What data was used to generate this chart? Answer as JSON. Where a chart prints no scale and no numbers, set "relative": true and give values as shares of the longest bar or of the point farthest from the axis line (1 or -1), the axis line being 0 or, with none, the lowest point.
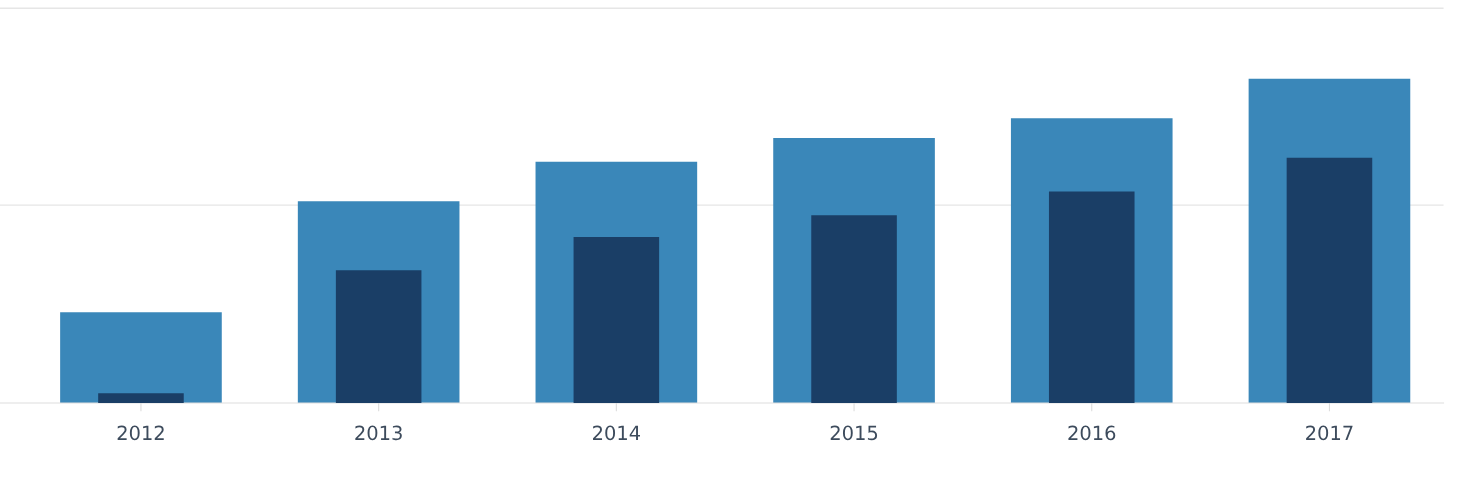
{
  "chart_data": {
    "type": "bar",
    "relative": true,
    "legend": false,
    "ref_lines": [
      {
        "axis": "y",
        "value": 0.61,
        "color": "#e6e6e6"
      },
      {
        "axis": "y",
        "value": 1.217,
        "color": "#e6e6e6"
      }
    ],
    "categories": [
      "2012",
      "2013",
      "2014",
      "2015",
      "2016",
      "2017"
    ],
    "series": [
      {
        "color": "#3a87b9",
        "values": [
          0.28,
          0.622,
          0.744,
          0.817,
          0.878,
          1.0
        ]
      },
      {
        "color": "#1a3e66",
        "values": [
          0.03,
          0.409,
          0.512,
          0.579,
          0.652,
          0.756
        ]
      }
    ]
  }
}
